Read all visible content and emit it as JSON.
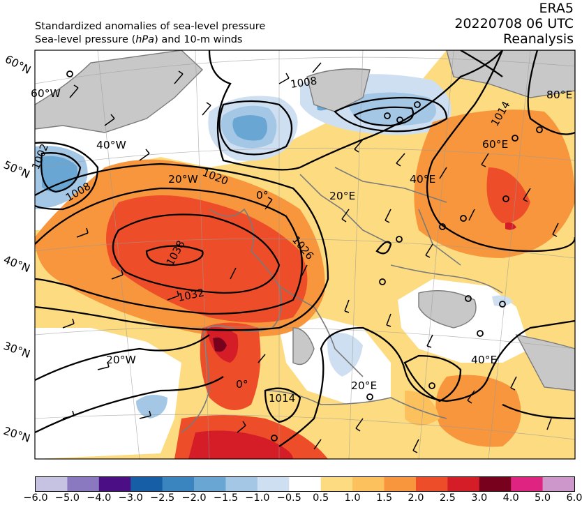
{
  "header": {
    "subtitle_line1": "Standardized anomalies of sea-level pressure",
    "subtitle_line2_pre": "Sea-level pressure (",
    "subtitle_line2_unit": "hPa",
    "subtitle_line2_post": ") and 10-m winds",
    "dataset": "ERA5",
    "datetime": "20220708 06 UTC",
    "product": "Reanalysis"
  },
  "map": {
    "latitude_labels": [
      "60°N",
      "50°N",
      "40°N",
      "30°N",
      "20°N"
    ],
    "longitude_labels": [
      "60°W",
      "40°W",
      "20°W",
      "0°",
      "20°E",
      "40°E",
      "60°E",
      "80°E",
      "20°W",
      "0°",
      "20°E",
      "40°E"
    ],
    "isobar_labels": [
      "1008",
      "1002",
      "1008",
      "1020",
      "1026",
      "1038",
      "1032",
      "1014",
      "1014"
    ],
    "high_pressure_center_hpa": 1038,
    "low_pressure_centers_hpa": [
      1002,
      1008
    ],
    "land_color": "#c8c8c8",
    "coastline_color": "#7a7a7a",
    "isobar_color": "#000000"
  },
  "colorbar": {
    "tick_labels": [
      "−6.0",
      "−5.0",
      "−4.0",
      "−3.0",
      "−2.5",
      "−2.0",
      "−1.5",
      "−1.0",
      "−0.5",
      "0.5",
      "1.0",
      "1.5",
      "2.0",
      "2.5",
      "3.0",
      "4.0",
      "5.0",
      "6.0"
    ],
    "colors": [
      "#c6c3e2",
      "#8a79c0",
      "#4b0e84",
      "#165ea6",
      "#3a84c0",
      "#69a6d3",
      "#a4c7e5",
      "#cedff2",
      "#ffffff",
      "#fddb80",
      "#fcc05c",
      "#f7963c",
      "#ee4d2a",
      "#d41d27",
      "#78021e",
      "#de2381",
      "#cd97cc"
    ]
  }
}
